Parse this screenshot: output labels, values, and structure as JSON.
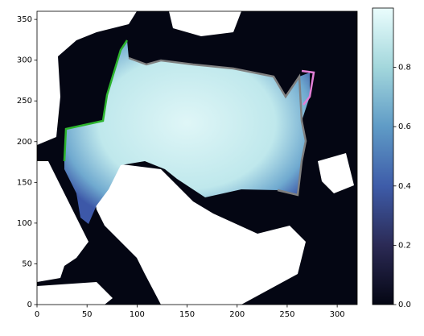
{
  "chart_data": {
    "type": "image",
    "xlim": [
      0,
      320
    ],
    "ylim": [
      0,
      360
    ],
    "xticks": [
      0,
      50,
      100,
      150,
      200,
      250,
      300
    ],
    "yticks": [
      0,
      50,
      100,
      150,
      200,
      250,
      300,
      350
    ],
    "colorbar": {
      "clim": [
        0,
        1
      ],
      "ticks": [
        {
          "value": 0,
          "label": "0.0"
        },
        {
          "value": 0.2,
          "label": "0.2"
        },
        {
          "value": 0.4,
          "label": "0.4"
        },
        {
          "value": 0.6,
          "label": "0.6"
        },
        {
          "value": 0.8,
          "label": "0.8"
        }
      ],
      "colors": [
        "#040613",
        "#2b2a55",
        "#3e5ca9",
        "#5f9bc6",
        "#a3d7dc",
        "#eafdfd"
      ]
    }
  }
}
